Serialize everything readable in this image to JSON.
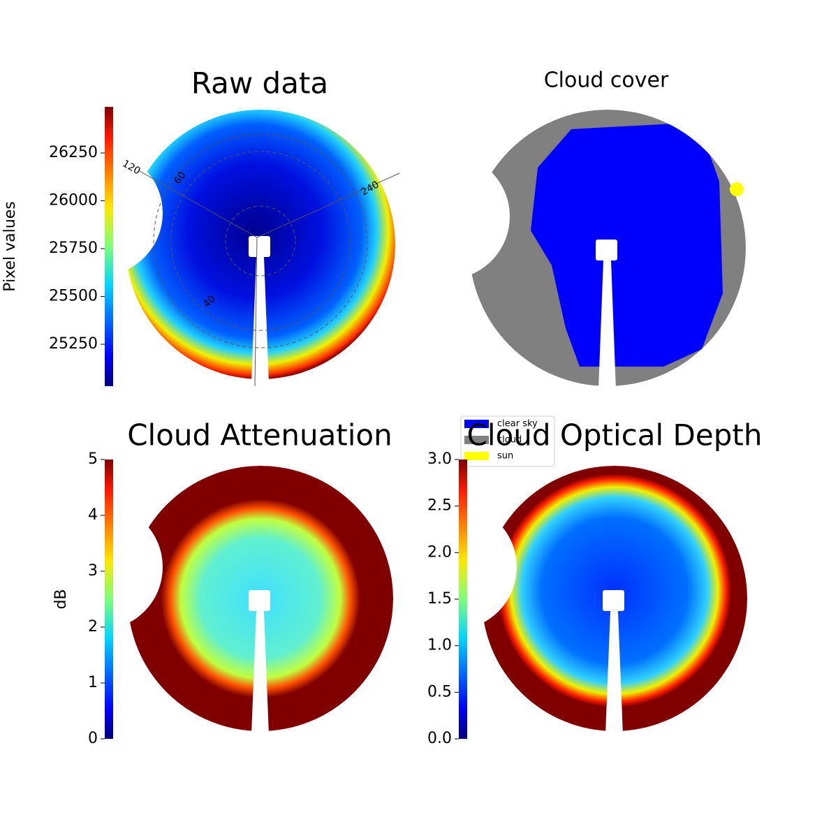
{
  "chart_data": [
    {
      "type": "image",
      "title": "Raw data",
      "colorbar_label": "Pixel values",
      "colormap": "jet",
      "ylim": [
        25031,
        26491
      ],
      "yticks": [
        25250,
        25500,
        25750,
        26000,
        26250
      ],
      "annotations": [
        "120",
        "60",
        "240",
        "40"
      ]
    },
    {
      "type": "category-image",
      "title": "Cloud cover",
      "series": [
        {
          "name": "clear sky",
          "color": "#0000ff"
        },
        {
          "name": "cloud",
          "color": "#808080"
        },
        {
          "name": "sun",
          "color": "#ffff00"
        }
      ]
    },
    {
      "type": "image",
      "title": "Cloud Attenuation",
      "colorbar_label": "dB",
      "colormap": "jet",
      "ylim": [
        0,
        5
      ],
      "yticks": [
        0,
        1,
        2,
        3,
        4,
        5
      ]
    },
    {
      "type": "image",
      "title": "Cloud Optical Depth",
      "colormap": "jet",
      "ylim": [
        0,
        3
      ],
      "yticks": [
        {
          "value": 0,
          "label": "0.0"
        },
        {
          "value": 0.5,
          "label": "0.5"
        },
        {
          "value": 1,
          "label": "1.0"
        },
        {
          "value": 1.5,
          "label": "1.5"
        },
        {
          "value": 2,
          "label": "2.0"
        },
        {
          "value": 2.5,
          "label": "2.5"
        },
        {
          "value": 3,
          "label": "3.0"
        }
      ]
    }
  ]
}
